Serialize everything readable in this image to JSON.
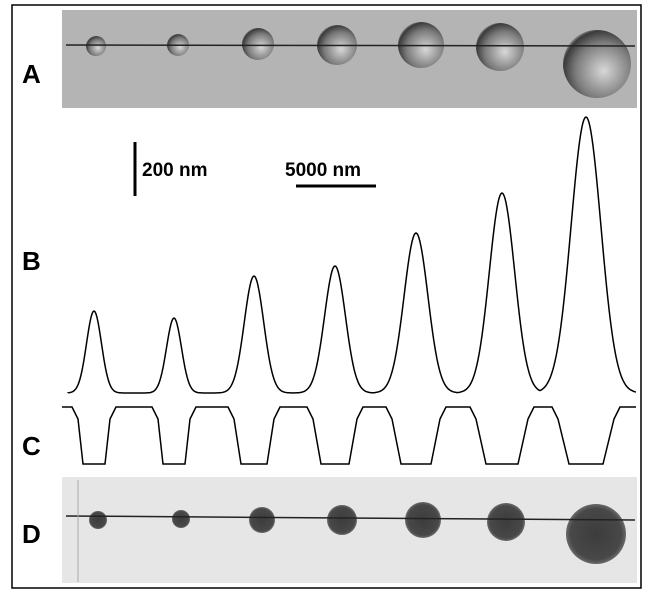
{
  "panels": {
    "a": {
      "label": "A"
    },
    "b": {
      "label": "B"
    },
    "c": {
      "label": "C"
    },
    "d": {
      "label": "D"
    }
  },
  "scale_bars": {
    "vertical": {
      "label": "200 nm"
    },
    "horizontal": {
      "label": "5000 nm"
    }
  }
}
